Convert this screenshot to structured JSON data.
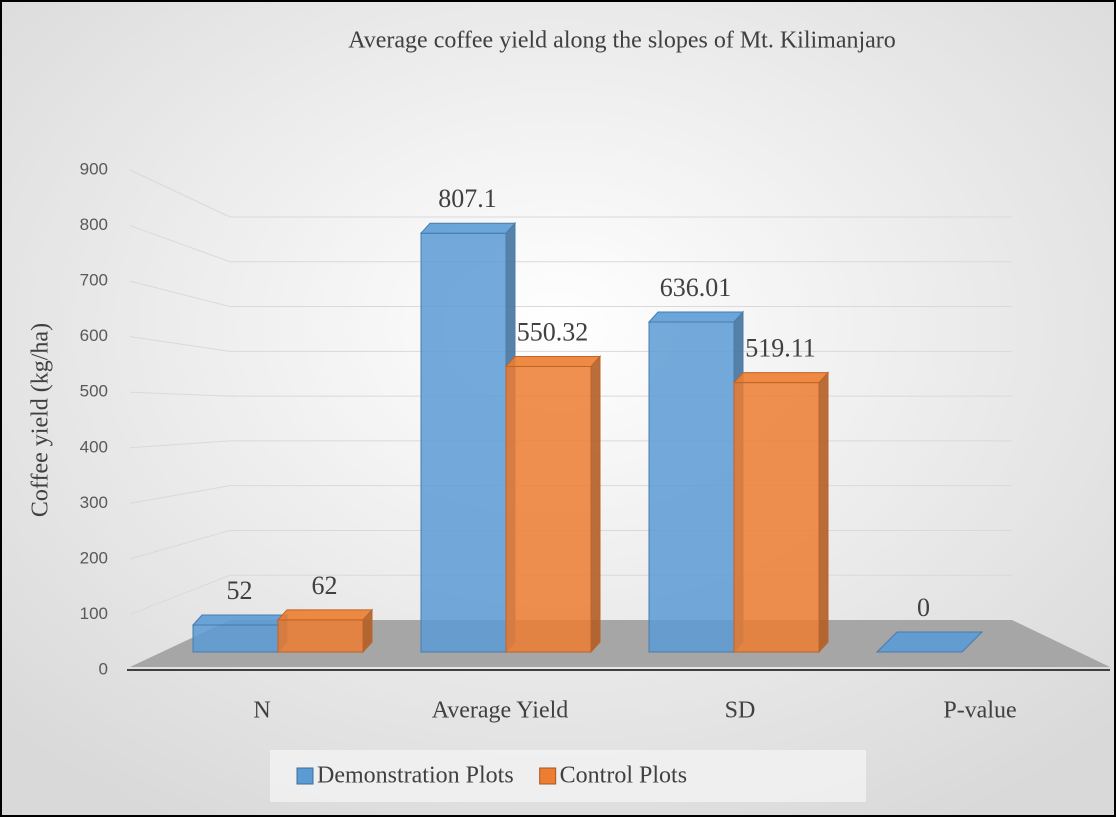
{
  "chart_data": {
    "type": "bar3d",
    "title": "Average coffee yield along the slopes of Mt. Kilimanjaro",
    "y_axis_label": "Coffee yield (kg/ha)",
    "categories": [
      "N",
      "Average Yield",
      "SD",
      "P-value"
    ],
    "series": [
      {
        "name": "Demonstration Plots",
        "color": "#5b9bd5",
        "values": [
          52,
          807.1,
          636.01,
          0
        ]
      },
      {
        "name": "Control Plots",
        "color": "#ed7d31",
        "values": [
          62,
          550.32,
          519.11,
          null
        ]
      }
    ],
    "ylim": [
      0,
      900
    ],
    "yticks": [
      0,
      100,
      200,
      300,
      400,
      500,
      600,
      700,
      800,
      900
    ],
    "grid": true,
    "legend": "bottom"
  }
}
